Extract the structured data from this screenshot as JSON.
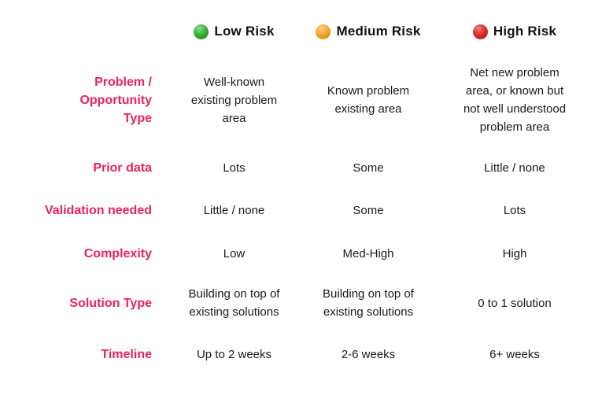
{
  "chart_data": {
    "type": "table",
    "columns": [
      {
        "label": "Low Risk",
        "dot_icon": "green-circle-icon",
        "dot_color": "#2da32d"
      },
      {
        "label": "Medium Risk",
        "dot_icon": "orange-circle-icon",
        "dot_color": "#f09e26"
      },
      {
        "label": "High Risk",
        "dot_icon": "red-circle-icon",
        "dot_color": "#d92b2b"
      }
    ],
    "rows": [
      {
        "label": "Problem /\nOpportunity\nType",
        "low": "Well-known\nexisting problem\narea",
        "medium": "Known problem\nexisting area",
        "high": "Net new problem\narea, or known but\nnot well understood\nproblem area"
      },
      {
        "label": "Prior data",
        "low": "Lots",
        "medium": "Some",
        "high": "Little / none"
      },
      {
        "label": "Validation needed",
        "low": "Little / none",
        "medium": "Some",
        "high": "Lots"
      },
      {
        "label": "Complexity",
        "low": "Low",
        "medium": "Med-High",
        "high": "High"
      },
      {
        "label": "Solution Type",
        "low": "Building on top of\nexisting solutions",
        "medium": "Building on top of\nexisting solutions",
        "high": "0 to 1 solution"
      },
      {
        "label": "Timeline",
        "low": "Up to 2 weeks",
        "medium": "2-6 weeks",
        "high": "6+ weeks"
      }
    ]
  },
  "colors": {
    "background": "#ffffff",
    "row_label_text": "#ee215a",
    "body_text": "#1a1a1a",
    "header_text": "#111111",
    "low_dot": "#2da32d",
    "medium_dot": "#f09e26",
    "high_dot": "#d92b2b"
  }
}
